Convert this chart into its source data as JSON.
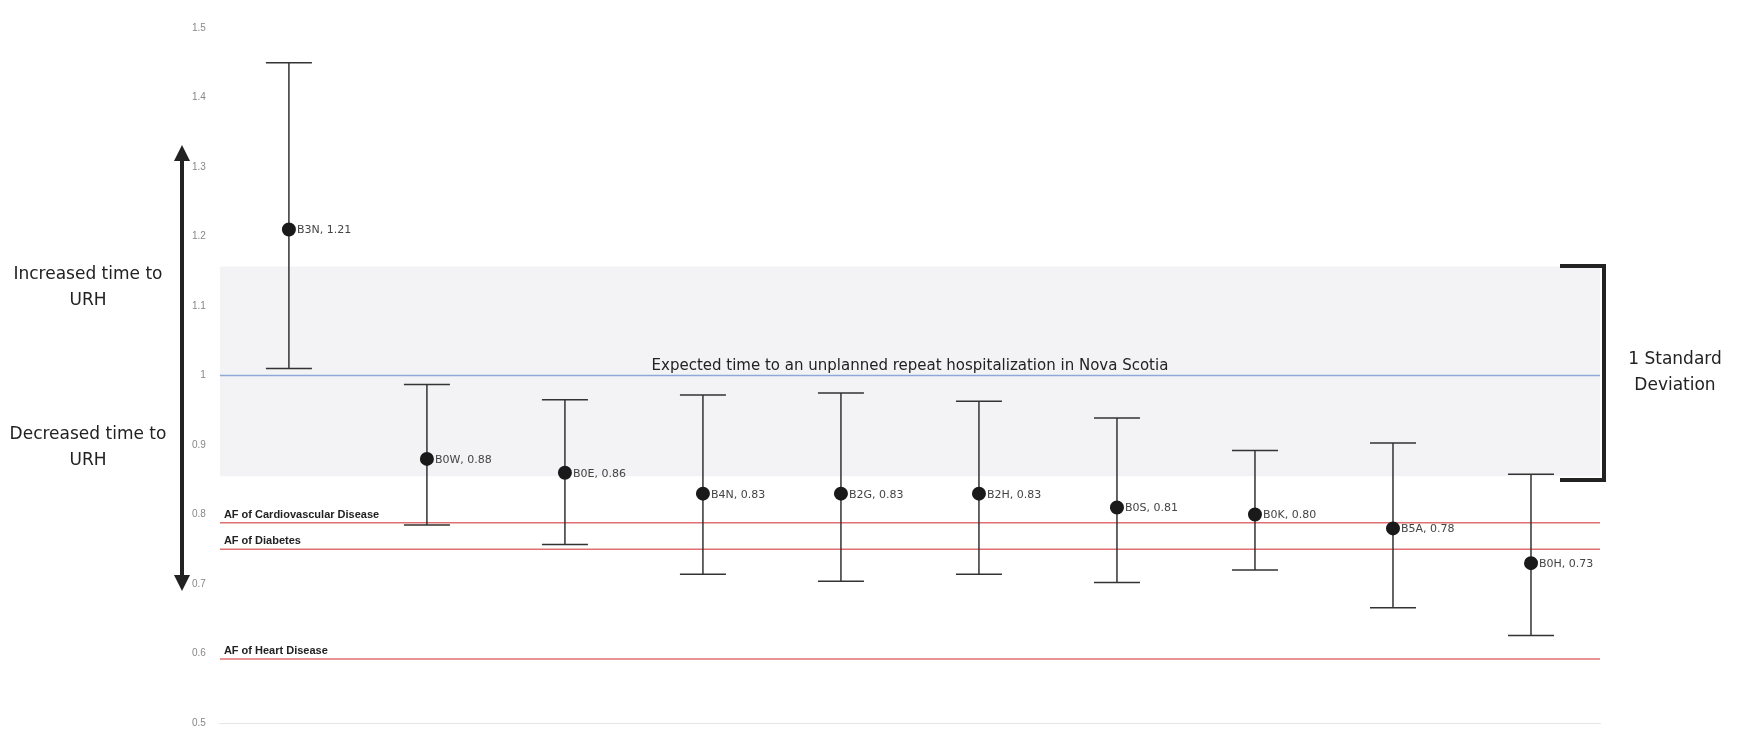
{
  "chart_data": {
    "type": "scatter",
    "categories": [
      null,
      null,
      null,
      null,
      null,
      null,
      null,
      null,
      null,
      null
    ],
    "values": [
      1.21,
      0.88,
      0.86,
      0.83,
      0.83,
      0.83,
      0.81,
      0.8,
      0.78,
      0.73
    ],
    "value_labels": [
      "B3N, 1.21",
      "B0W, 0.88",
      "B0E, 0.86",
      "B4N, 0.83",
      "B2G, 0.83",
      "B2H, 0.83",
      "B0S, 0.81",
      "B0K, 0.80",
      "B5A, 0.78",
      "B0H, 0.73"
    ],
    "errors": [
      [
        1.01,
        1.45
      ],
      [
        0.785,
        0.987
      ],
      [
        0.757,
        0.965
      ],
      [
        0.714,
        0.972
      ],
      [
        0.704,
        0.975
      ],
      [
        0.714,
        0.963
      ],
      [
        0.702,
        0.939
      ],
      [
        0.72,
        0.892
      ],
      [
        0.666,
        0.903
      ],
      [
        0.626,
        0.858
      ]
    ],
    "color": "#1a1a1a",
    "marker": "circle",
    "ylim": [
      0.5,
      1.5
    ],
    "yticks": [
      0.5,
      0.6,
      0.7,
      0.8,
      0.9,
      1,
      1.1,
      1.2,
      1.3,
      1.4,
      1.5
    ],
    "tick_labels": "y",
    "grid": false,
    "legend": false,
    "ref_lines": [
      {
        "axis": "y",
        "value": 1,
        "label": "Expected time to an unplanned repeat hospitalization in Nova Scotia",
        "color": "#8fa9d6"
      },
      {
        "axis": "y",
        "value": 0.788,
        "label": "AF of Cardiovascular Disease",
        "color": "#e07070"
      },
      {
        "axis": "y",
        "value": 0.75,
        "label": "AF of Diabetes",
        "color": "#e07070"
      },
      {
        "axis": "y",
        "value": 0.592,
        "label": "AF of Heart Disease",
        "color": "#e07070"
      }
    ],
    "bands": [
      {
        "axis": "y",
        "from": 0.855,
        "to": 1.157,
        "label": "1 Standard Deviation",
        "color": "#f3f3f6"
      }
    ],
    "annotations": [
      "Increased time to URH",
      "Decreased time to URH"
    ]
  }
}
